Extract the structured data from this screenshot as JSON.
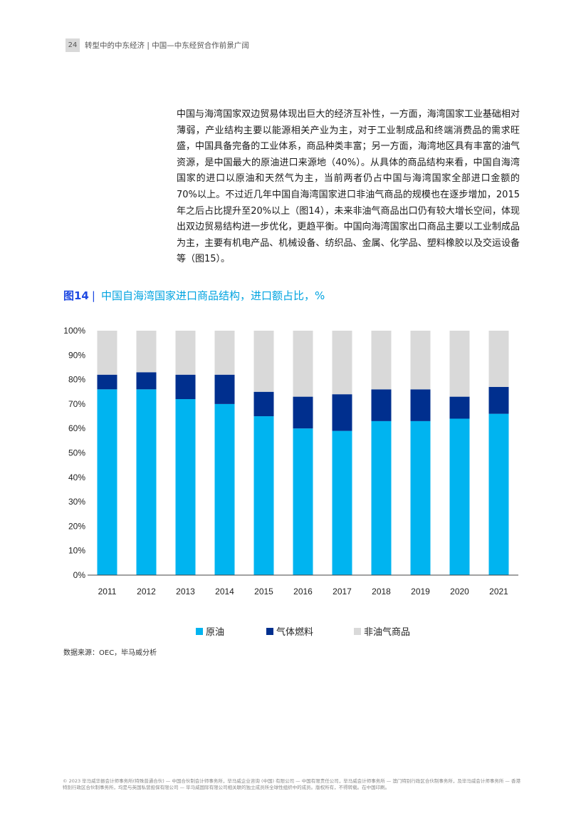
{
  "header": {
    "page_number": "24",
    "title": "转型中的中东经济 | 中国—中东经贸合作前景广阔"
  },
  "body": {
    "paragraph": "中国与海湾国家双边贸易体现出巨大的经济互补性，一方面，海湾国家工业基础相对薄弱，产业结构主要以能源相关产业为主，对于工业制成品和终端消费品的需求旺盛，中国具备完备的工业体系，商品种类丰富；另一方面，海湾地区具有丰富的油气资源，是中国最大的原油进口来源地（40%）。从具体的商品结构来看，中国自海湾国家的进口以原油和天然气为主，当前两者仍占中国与海湾国家全部进口金额的70%以上。不过近几年中国自海湾国家进口非油气商品的规模也在逐步增加，2015年之后占比提升至20%以上（图14），未来非油气商品出口仍有较大增长空间，体现出双边贸易结构进一步优化，更趋平衡。中国向海湾国家出口商品主要以工业制成品为主，主要有机电产品、机械设备、纺织品、金属、化学品、塑料橡胶以及交运设备等（图15）。"
  },
  "figure": {
    "number": "图14",
    "separator": "|",
    "title": "中国自海湾国家进口商品结构，进口额占比，%"
  },
  "chart_data": {
    "type": "bar",
    "stacked": true,
    "categories": [
      "2011",
      "2012",
      "2013",
      "2014",
      "2015",
      "2016",
      "2017",
      "2018",
      "2019",
      "2020",
      "2021"
    ],
    "series": [
      {
        "name": "原油",
        "color": "#00b4f0",
        "values": [
          76,
          76,
          72,
          70,
          65,
          60,
          59,
          63,
          63,
          64,
          66
        ]
      },
      {
        "name": "气体燃料",
        "color": "#002f8e",
        "values": [
          6,
          7,
          10,
          12,
          10,
          13,
          15,
          13,
          13,
          9,
          11
        ]
      },
      {
        "name": "非油气商品",
        "color": "#d9d9d9",
        "values": [
          18,
          17,
          18,
          18,
          25,
          27,
          26,
          24,
          24,
          27,
          23
        ]
      }
    ],
    "y_ticks": [
      "0%",
      "10%",
      "20%",
      "30%",
      "40%",
      "50%",
      "60%",
      "70%",
      "80%",
      "90%",
      "100%"
    ],
    "ylim": [
      0,
      100
    ],
    "grid": false,
    "legend_position": "bottom"
  },
  "legend": {
    "items": [
      {
        "label": "原油",
        "color": "#00b4f0"
      },
      {
        "label": "气体燃料",
        "color": "#002f8e"
      },
      {
        "label": "非油气商品",
        "color": "#d9d9d9"
      }
    ]
  },
  "source": "数据来源：OEC，毕马威分析",
  "footer": "© 2023 毕马威华振会计师事务所(特殊普通合伙) — 中国合伙制会计师事务所，毕马威企业咨询 (中国) 有限公司 — 中国有限责任公司，毕马威会计师事务所 — 澳门特别行政区合伙制事务所，及毕马威会计师事务所 — 香港特别行政区合伙制事务所，均是与英国私营担保有限公司 — 毕马威国际有限公司相关联的独立成员所全球性组织中的成员。版权所有，不得转载。在中国印刷。"
}
